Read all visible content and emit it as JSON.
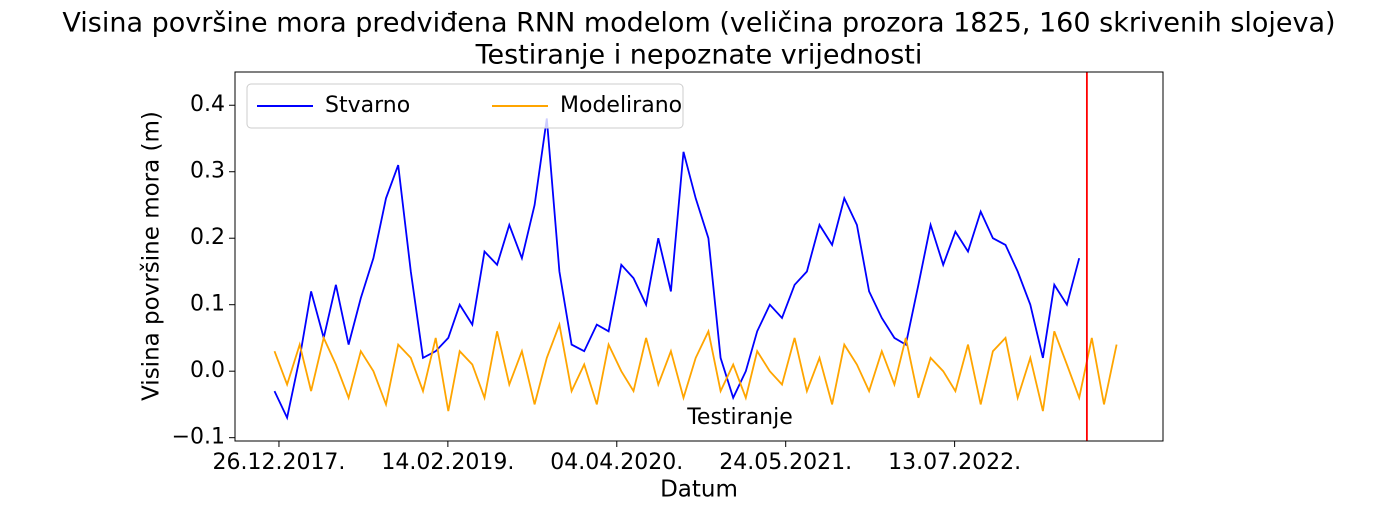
{
  "chart_data": {
    "type": "line",
    "title": "Visina površine mora predviđena RNN modelom (veličina prozora 1825, 160 skrivenih slojeva)",
    "subtitle": "Testiranje i nepoznate vrijednosti",
    "x_label": "Datum",
    "y_label": "Visina površine mora (m)",
    "annotation": "Testiranje",
    "vline": {
      "x": "2023-06-03",
      "color": "#ff0000"
    },
    "legend": "upper left",
    "xlim": [
      "2017-09-09",
      "2023-12-07"
    ],
    "xticks": [
      {
        "value": "2017-12-26",
        "label": "26.12.2017."
      },
      {
        "value": "2019-02-14",
        "label": "14.02.2019."
      },
      {
        "value": "2020-04-04",
        "label": "04.04.2020."
      },
      {
        "value": "2021-05-24",
        "label": "24.05.2021."
      },
      {
        "value": "2022-07-13",
        "label": "13.07.2022."
      }
    ],
    "ylim": [
      -0.105,
      0.45
    ],
    "yticks": [
      {
        "value": -0.1,
        "label": "−0.1"
      },
      {
        "value": 0,
        "label": "0.0"
      },
      0.1,
      0.2,
      0.3,
      0.4
    ],
    "x": [
      "2017-12-15",
      "2018-01-15",
      "2018-02-15",
      "2018-03-15",
      "2018-04-15",
      "2018-05-15",
      "2018-06-15",
      "2018-07-15",
      "2018-08-15",
      "2018-09-15",
      "2018-10-15",
      "2018-11-15",
      "2018-12-15",
      "2019-01-15",
      "2019-02-15",
      "2019-03-15",
      "2019-04-15",
      "2019-05-15",
      "2019-06-15",
      "2019-07-15",
      "2019-08-15",
      "2019-09-15",
      "2019-10-15",
      "2019-11-15",
      "2019-12-15",
      "2020-01-15",
      "2020-02-15",
      "2020-03-15",
      "2020-04-15",
      "2020-05-15",
      "2020-06-15",
      "2020-07-15",
      "2020-08-15",
      "2020-09-15",
      "2020-10-15",
      "2020-11-15",
      "2020-12-15",
      "2021-01-15",
      "2021-02-15",
      "2021-03-15",
      "2021-04-15",
      "2021-05-15",
      "2021-06-15",
      "2021-07-15",
      "2021-08-15",
      "2021-09-15",
      "2021-10-15",
      "2021-11-15",
      "2021-12-15",
      "2022-01-15",
      "2022-02-15",
      "2022-03-15",
      "2022-04-15",
      "2022-05-15",
      "2022-06-15",
      "2022-07-15",
      "2022-08-15",
      "2022-09-15",
      "2022-10-15",
      "2022-11-15",
      "2022-12-15",
      "2023-01-15",
      "2023-02-15",
      "2023-03-15",
      "2023-04-15",
      "2023-05-15",
      "2023-06-15",
      "2023-07-15",
      "2023-08-15"
    ],
    "series": [
      {
        "name": "Stvarno",
        "color": "#0000ff",
        "values": [
          -0.03,
          -0.07,
          0.02,
          0.12,
          0.05,
          0.13,
          0.04,
          0.11,
          0.17,
          0.26,
          0.31,
          0.15,
          0.02,
          0.03,
          0.05,
          0.1,
          0.07,
          0.18,
          0.16,
          0.22,
          0.17,
          0.25,
          0.38,
          0.15,
          0.04,
          0.03,
          0.07,
          0.06,
          0.16,
          0.14,
          0.1,
          0.2,
          0.12,
          0.33,
          0.26,
          0.2,
          0.02,
          -0.04,
          0.0,
          0.06,
          0.1,
          0.08,
          0.13,
          0.15,
          0.22,
          0.19,
          0.26,
          0.22,
          0.12,
          0.08,
          0.05,
          0.04,
          0.13,
          0.22,
          0.16,
          0.21,
          0.18,
          0.24,
          0.2,
          0.19,
          0.15,
          0.1,
          0.02,
          0.13,
          0.1,
          0.17,
          null,
          null,
          null
        ]
      },
      {
        "name": "Modelirano",
        "color": "#ffa500",
        "values": [
          0.03,
          -0.02,
          0.04,
          -0.03,
          0.05,
          0.01,
          -0.04,
          0.03,
          0.0,
          -0.05,
          0.04,
          0.02,
          -0.03,
          0.05,
          -0.06,
          0.03,
          0.01,
          -0.04,
          0.06,
          -0.02,
          0.03,
          -0.05,
          0.02,
          0.07,
          -0.03,
          0.01,
          -0.05,
          0.04,
          0.0,
          -0.03,
          0.05,
          -0.02,
          0.03,
          -0.04,
          0.02,
          0.06,
          -0.03,
          0.01,
          -0.04,
          0.03,
          0.0,
          -0.02,
          0.05,
          -0.03,
          0.02,
          -0.05,
          0.04,
          0.01,
          -0.03,
          0.03,
          -0.02,
          0.05,
          -0.04,
          0.02,
          0.0,
          -0.03,
          0.04,
          -0.05,
          0.03,
          0.05,
          -0.04,
          0.02,
          -0.06,
          0.06,
          0.01,
          -0.04,
          0.05,
          -0.05,
          0.04
        ]
      }
    ]
  }
}
